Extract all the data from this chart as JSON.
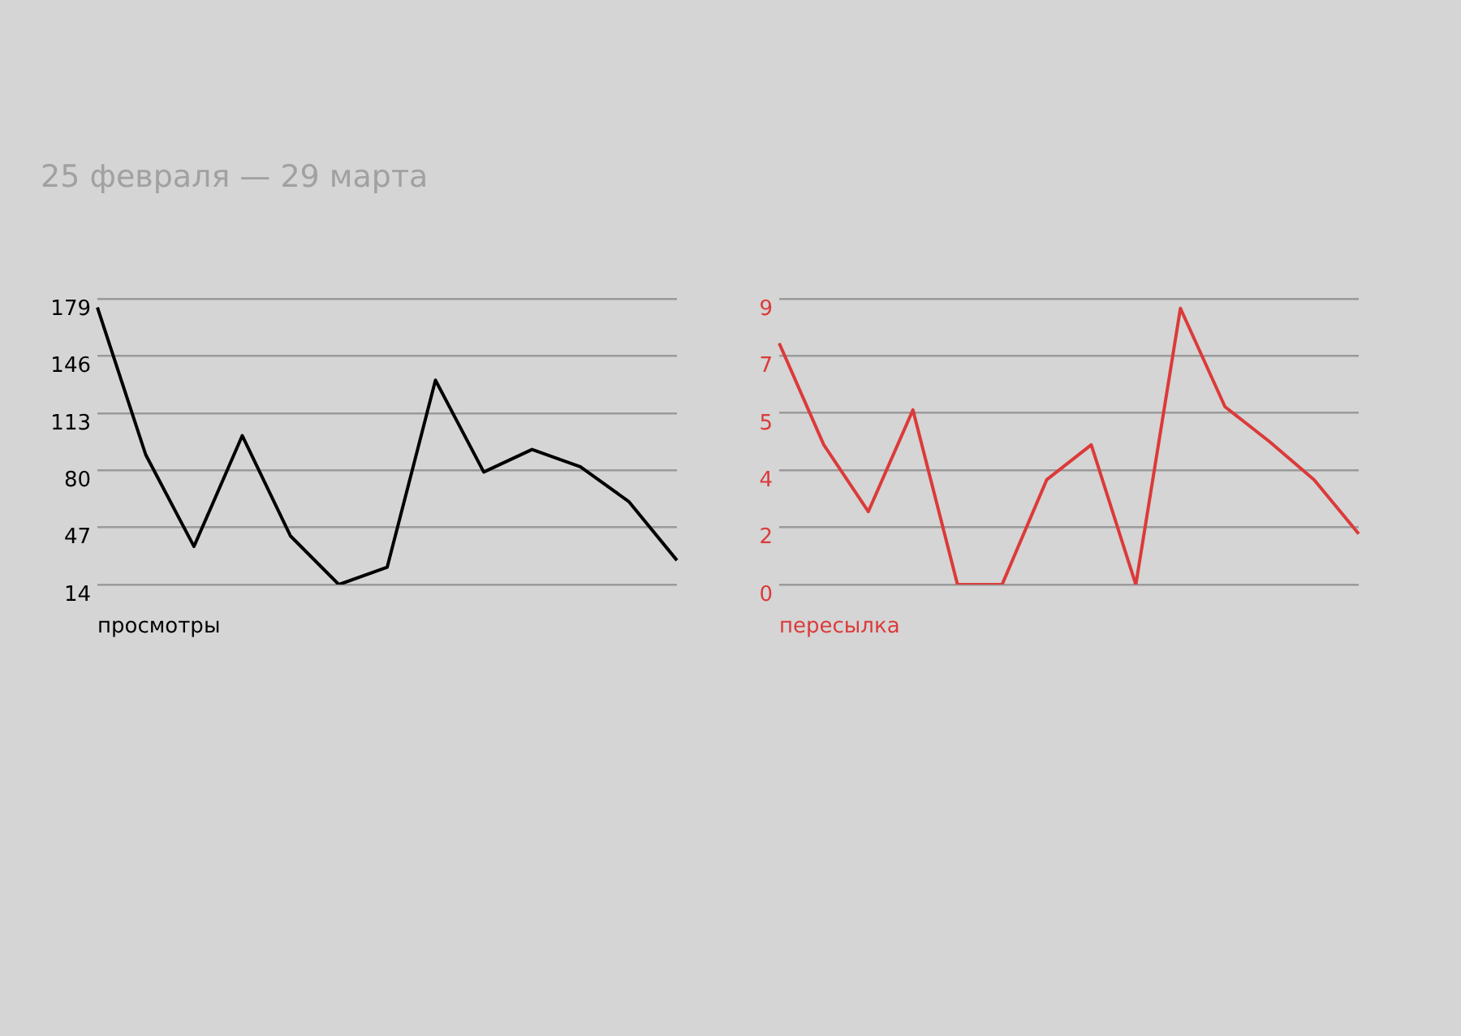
{
  "chart_data": [
    {
      "type": "line",
      "title": "25 февраля — 29 марта",
      "xlabel": "просмотры",
      "categories": [
        null,
        null,
        null,
        null,
        null,
        null,
        null,
        null,
        null,
        null,
        null,
        null,
        null
      ],
      "ylim": [
        14,
        179
      ],
      "yticks": [
        14,
        47,
        80,
        113,
        146,
        179
      ],
      "grid": "y",
      "legend": false,
      "tick_labels": "y",
      "series": [
        {
          "color": "#000000",
          "values": [
            174,
            89,
            36,
            100,
            42,
            14,
            24,
            132,
            79,
            92,
            82,
            62,
            28
          ]
        }
      ]
    },
    {
      "type": "line",
      "xlabel": "пересылка",
      "categories": [
        null,
        null,
        null,
        null,
        null,
        null,
        null,
        null,
        null,
        null,
        null,
        null,
        null,
        null
      ],
      "ylim": [
        0,
        9
      ],
      "yticks": [
        0,
        {
          "value": 1.8,
          "label": "2"
        },
        {
          "value": 3.6,
          "label": "4"
        },
        {
          "value": 5.4,
          "label": "5"
        },
        {
          "value": 7.2,
          "label": "7"
        },
        9
      ],
      "grid": "y",
      "legend": false,
      "tick_labels": "y",
      "series": [
        {
          "color": "#dc3a3a",
          "values": [
            7.6,
            4.4,
            2.3,
            5.5,
            0,
            0,
            3.3,
            4.4,
            0,
            8.7,
            5.6,
            4.5,
            3.3,
            1.6
          ]
        }
      ]
    }
  ]
}
